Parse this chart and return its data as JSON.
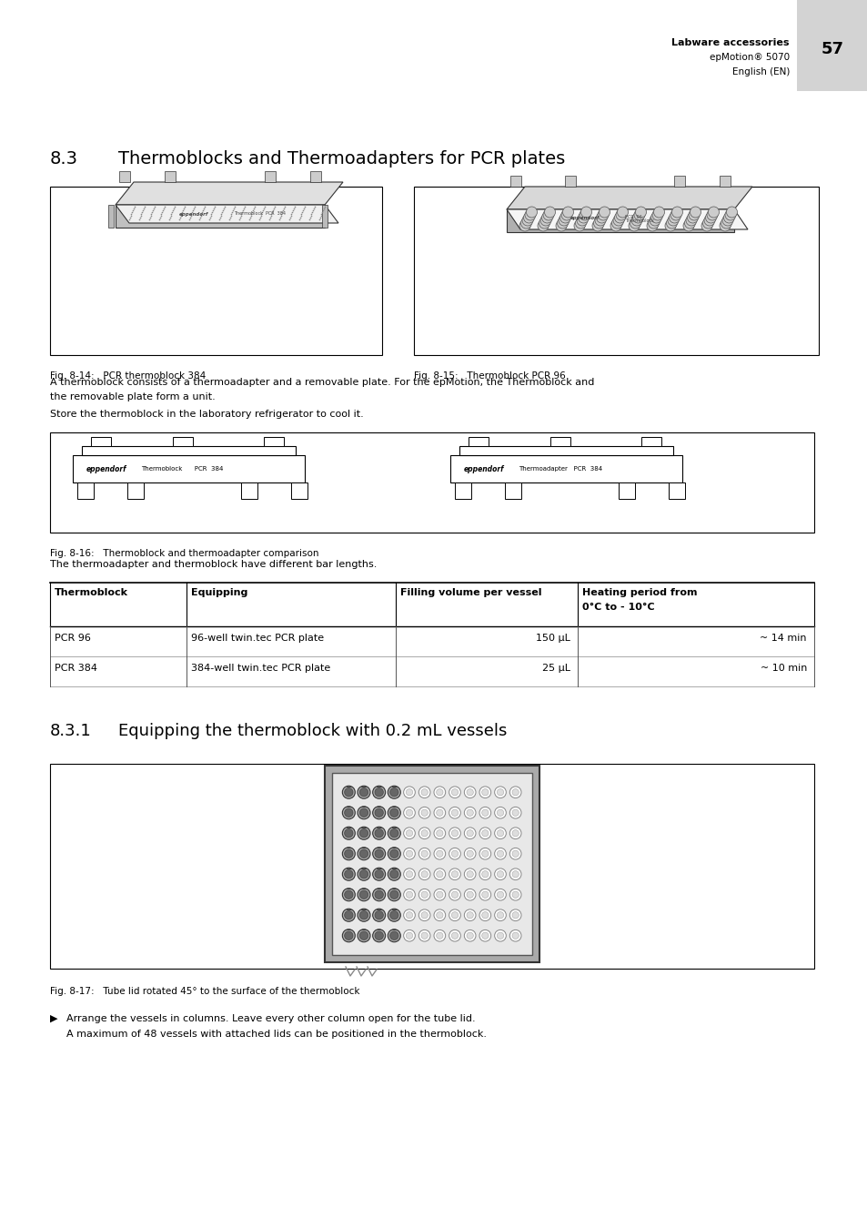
{
  "page_number": "57",
  "header_bold": "Labware accessories",
  "header_line2": "epMotion® 5070",
  "header_line3": "English (EN)",
  "header_bg": "#d3d3d3",
  "section_title_num": "8.3",
  "section_title_text": "Thermoblocks and Thermoadapters for PCR plates",
  "fig14_caption": "Fig. 8-14:   PCR thermoblock 384",
  "fig15_caption": "Fig. 8-15:   Thermoblock PCR 96",
  "fig16_caption": "Fig. 8-16:   Thermoblock and thermoadapter comparison",
  "fig17_caption": "Fig. 8-17:   Tube lid rotated 45° to the surface of the thermoblock",
  "para1": "A thermoblock consists of a thermoadapter and a removable plate. For the epMotion, the Thermoblock and",
  "para1b": "the removable plate form a unit.",
  "para2": "Store the thermoblock in the laboratory refrigerator to cool it.",
  "para3": "The thermoadapter and thermoblock have different bar lengths.",
  "subsection_num": "8.3.1",
  "subsection_text": "Equipping the thermoblock with 0.2 mL vessels",
  "bullet_arrow": "▶",
  "bullet_text1": "Arrange the vessels in columns. Leave every other column open for the tube lid.",
  "bullet_text2": "A maximum of 48 vessels with attached lids can be positioned in the thermoblock.",
  "table_col0_header": "Thermoblock",
  "table_col1_header": "Equipping",
  "table_col2_header": "Filling volume per vessel",
  "table_col3_header": "Heating period from",
  "table_col3_header2": "0°C to - 10°C",
  "table_rows": [
    [
      "PCR 96",
      "96-well twin.tec PCR plate",
      "150 μL",
      "~ 14 min"
    ],
    [
      "PCR 384",
      "384-well twin.tec PCR plate",
      "25 μL",
      "~ 10 min"
    ]
  ],
  "bg_color": "#ffffff",
  "text_color": "#000000",
  "light_gray": "#d3d3d3",
  "mid_gray": "#888888",
  "dark_gray": "#444444"
}
